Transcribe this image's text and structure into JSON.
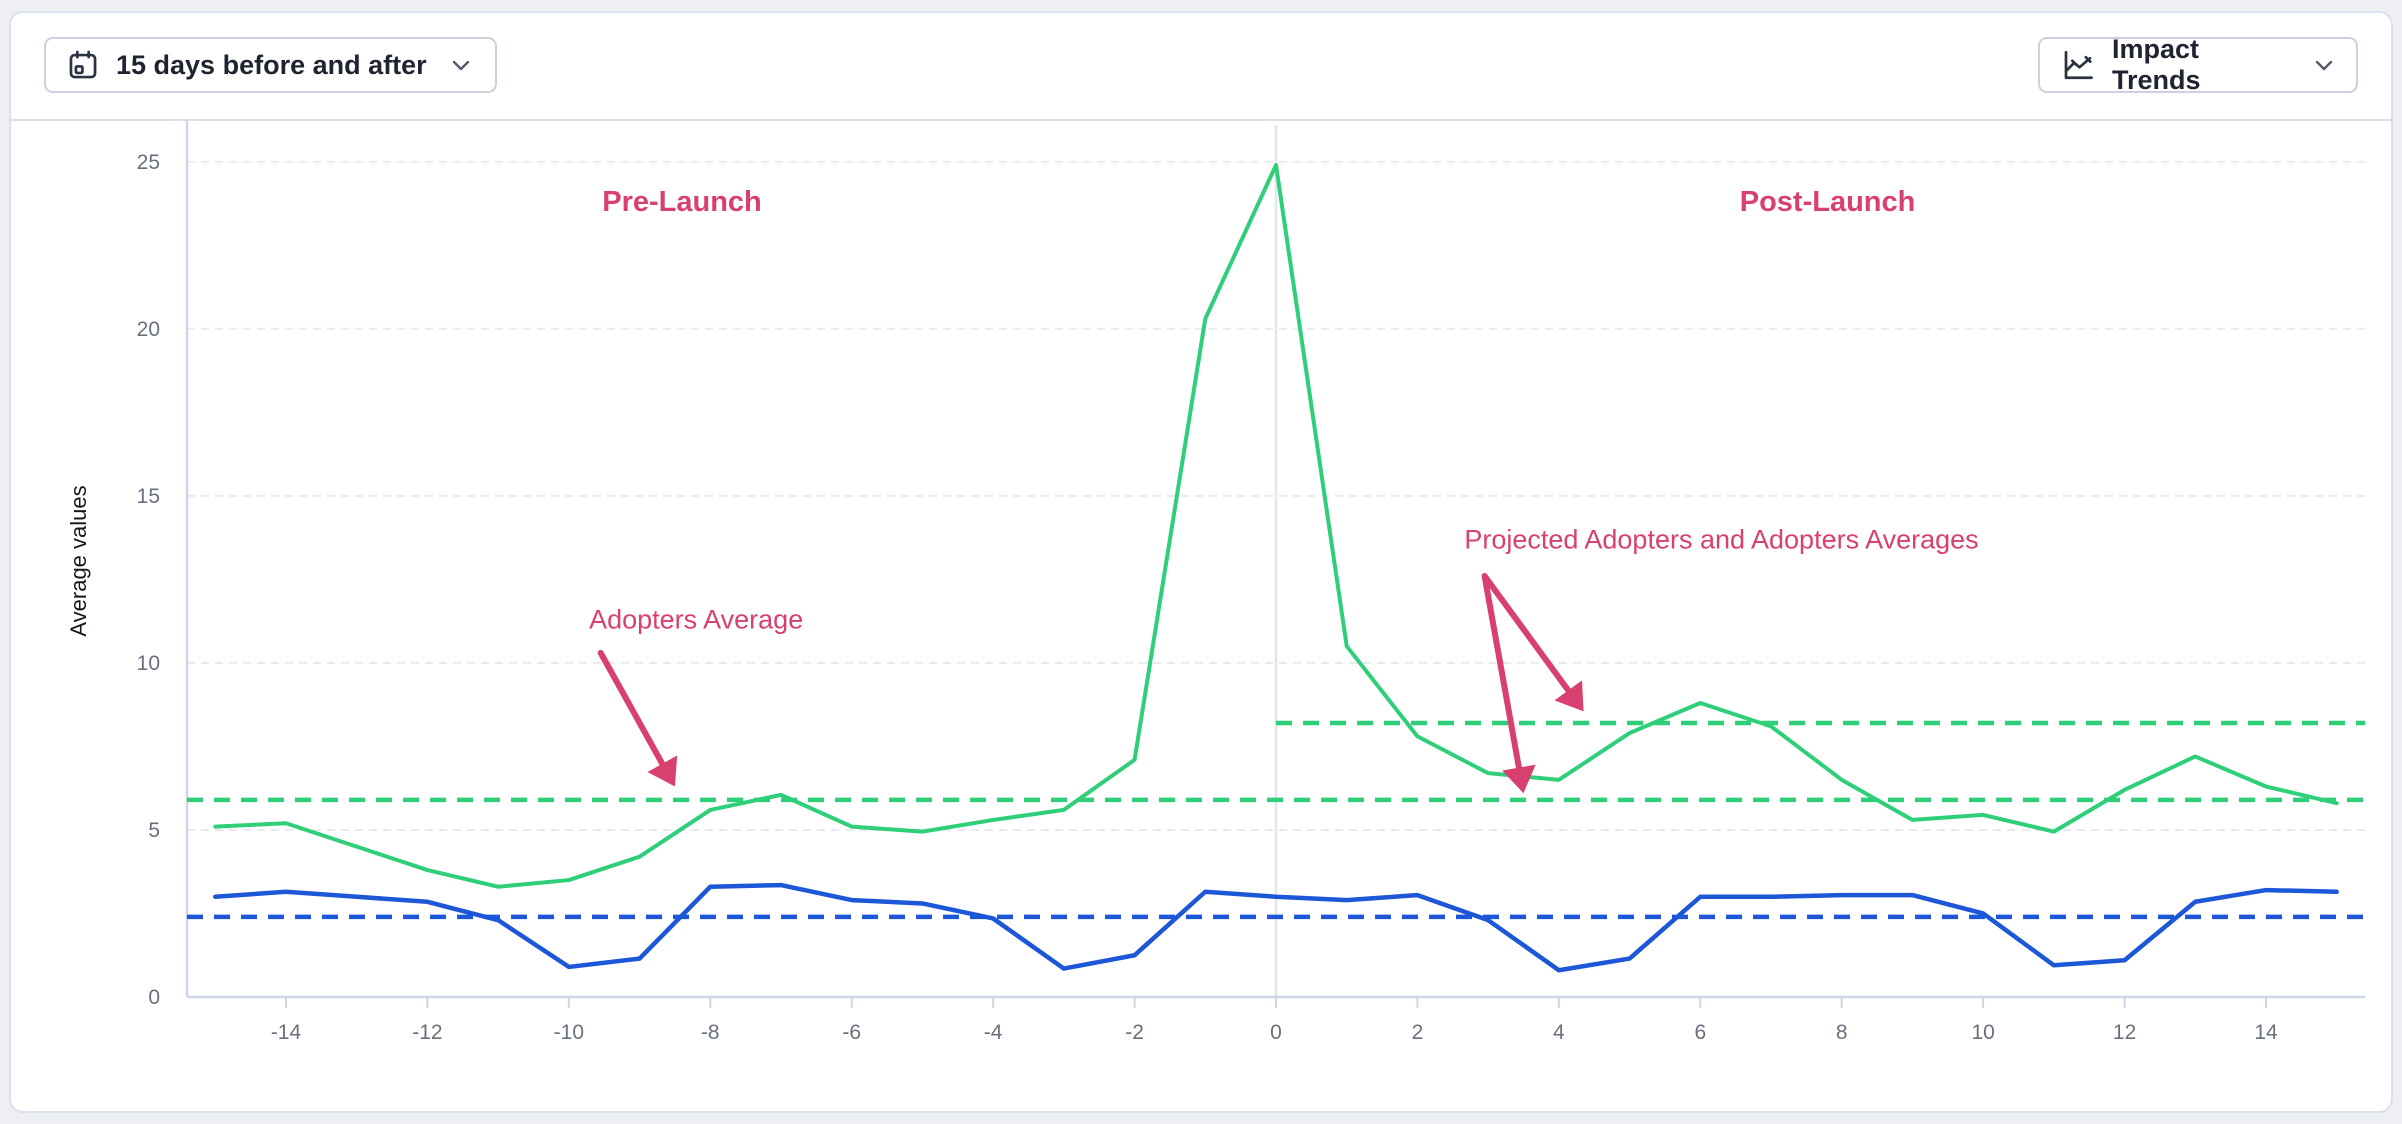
{
  "toolbar": {
    "date_range": {
      "label": "15 days before and after",
      "icon": "calendar-icon",
      "chevron": "chevron-down-icon"
    },
    "trends": {
      "label": "Impact Trends",
      "icon": "line-chart-icon",
      "chevron": "chevron-down-icon"
    }
  },
  "colors": {
    "adopters_green": "#2fcf7a",
    "projected_blue": "#1c57d8",
    "annotation_pink": "#d8406f",
    "gridline": "#e7eaef",
    "axis": "#ccd6e4",
    "launch_line": "#e3e6ea",
    "tick_text": "#69707d",
    "axis_label_text": "#15181e"
  },
  "chart_data": {
    "type": "line",
    "title": "",
    "xlabel": "",
    "ylabel": "Average values",
    "xlim": [
      -15.4,
      15.4
    ],
    "ylim": [
      0,
      26.1
    ],
    "grid": true,
    "legend": "none",
    "launch_line_x": 0,
    "x": [
      -15,
      -14,
      -13,
      -12,
      -11,
      -10,
      -9,
      -8,
      -7,
      -6,
      -5,
      -4,
      -3,
      -2,
      -1,
      0,
      1,
      2,
      3,
      4,
      5,
      6,
      7,
      8,
      9,
      10,
      11,
      12,
      13,
      14,
      15
    ],
    "xticks": [
      -14,
      -12,
      -10,
      -8,
      -6,
      -4,
      -2,
      0,
      2,
      4,
      6,
      8,
      10,
      12,
      14
    ],
    "yticks": [
      0,
      5,
      10,
      15,
      20,
      25
    ],
    "series": [
      {
        "name": "Adopters",
        "role": "solid-line",
        "color": "#2fcf7a",
        "width": 4,
        "values": [
          5.1,
          5.2,
          4.5,
          3.8,
          3.3,
          3.5,
          4.2,
          5.6,
          6.05,
          5.1,
          4.95,
          5.3,
          5.6,
          7.1,
          20.3,
          24.9,
          10.5,
          7.8,
          6.7,
          6.5,
          7.9,
          8.8,
          8.1,
          6.5,
          5.3,
          5.45,
          4.95,
          6.2,
          7.2,
          6.3,
          5.8
        ]
      },
      {
        "name": "Projected Adopters",
        "role": "solid-line",
        "color": "#1c57d8",
        "width": 4.5,
        "values": [
          3.0,
          3.15,
          3.0,
          2.85,
          2.3,
          0.9,
          1.15,
          3.3,
          3.35,
          2.9,
          2.8,
          2.35,
          0.85,
          1.25,
          3.15,
          3.0,
          2.9,
          3.05,
          2.3,
          0.8,
          1.15,
          3.0,
          3.0,
          3.05,
          3.05,
          2.5,
          0.95,
          1.1,
          2.85,
          3.2,
          3.15
        ]
      },
      {
        "name": "Adopters Average (Pre-Launch)",
        "role": "dashed-average",
        "color": "#2fcf7a",
        "width": 4.5,
        "value": 5.9,
        "x_range": [
          -15.4,
          15.4
        ]
      },
      {
        "name": "Adopters Average (Post-Launch)",
        "role": "dashed-average",
        "color": "#2fcf7a",
        "width": 4.5,
        "value": 8.2,
        "x_range": [
          0,
          15.4
        ]
      },
      {
        "name": "Projected Adopters Average",
        "role": "dashed-average",
        "color": "#1c57d8",
        "width": 4.5,
        "value": 2.4,
        "x_range": [
          -15.4,
          15.4
        ]
      }
    ],
    "annotations": [
      {
        "id": "pre-launch-label",
        "text": "Pre-Launch",
        "bold": true,
        "x": -8.4,
        "y": 23.8,
        "arrows": []
      },
      {
        "id": "post-launch-label",
        "text": "Post-Launch",
        "bold": true,
        "x": 7.8,
        "y": 23.8,
        "arrows": []
      },
      {
        "id": "adopters-average-label",
        "text": "Adopters Average",
        "bold": false,
        "x": -8.2,
        "y": 11.3,
        "arrows": [
          {
            "from": [
              -9.55,
              10.3
            ],
            "to": [
              -8.5,
              6.3
            ]
          }
        ]
      },
      {
        "id": "projected-adopters-averages-label",
        "text": "Projected Adopters and Adopters Averages",
        "bold": false,
        "x": 6.3,
        "y": 13.7,
        "arrows": [
          {
            "from": [
              2.95,
              12.6
            ],
            "to": [
              4.35,
              8.55
            ]
          },
          {
            "from": [
              2.95,
              12.6
            ],
            "to": [
              3.5,
              6.1
            ]
          }
        ]
      }
    ]
  }
}
